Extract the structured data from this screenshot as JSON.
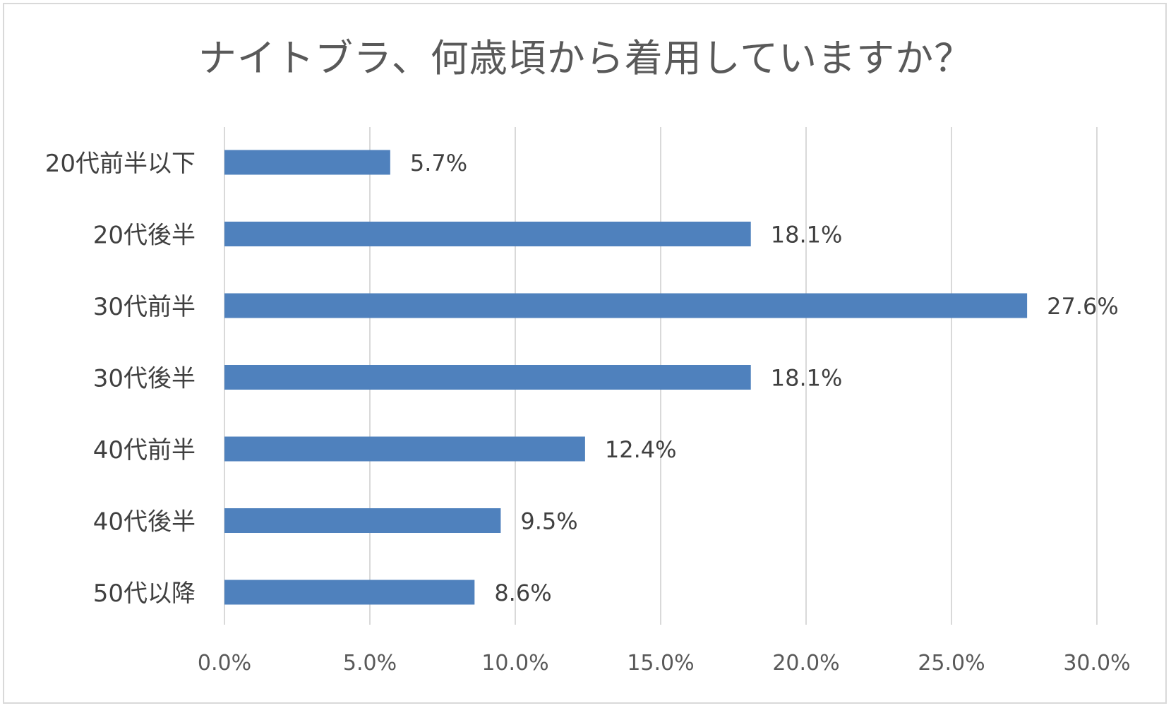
{
  "chart_data": {
    "type": "bar",
    "orientation": "horizontal",
    "title": "ナイトブラ、何歳頃から着用していますか？",
    "categories": [
      "20代前半以下",
      "20代後半",
      "30代前半",
      "30代後半",
      "40代前半",
      "40代後半",
      "50代以降"
    ],
    "values": [
      5.7,
      18.1,
      27.6,
      18.1,
      12.4,
      9.5,
      8.6
    ],
    "data_labels": [
      "5.7%",
      "18.1%",
      "27.6%",
      "18.1%",
      "12.4%",
      "9.5%",
      "8.6%"
    ],
    "x_ticks": [
      "0.0%",
      "5.0%",
      "10.0%",
      "15.0%",
      "20.0%",
      "25.0%",
      "30.0%"
    ],
    "xlim": [
      0,
      30
    ],
    "xlabel": "",
    "ylabel": "",
    "grid": "vertical",
    "legend": "none",
    "colors": {
      "bar": "#4f81bd",
      "grid": "#d9d9d9",
      "text": "#404040",
      "axis_text": "#595959",
      "title": "#595959",
      "border": "#d9d9d9"
    }
  }
}
